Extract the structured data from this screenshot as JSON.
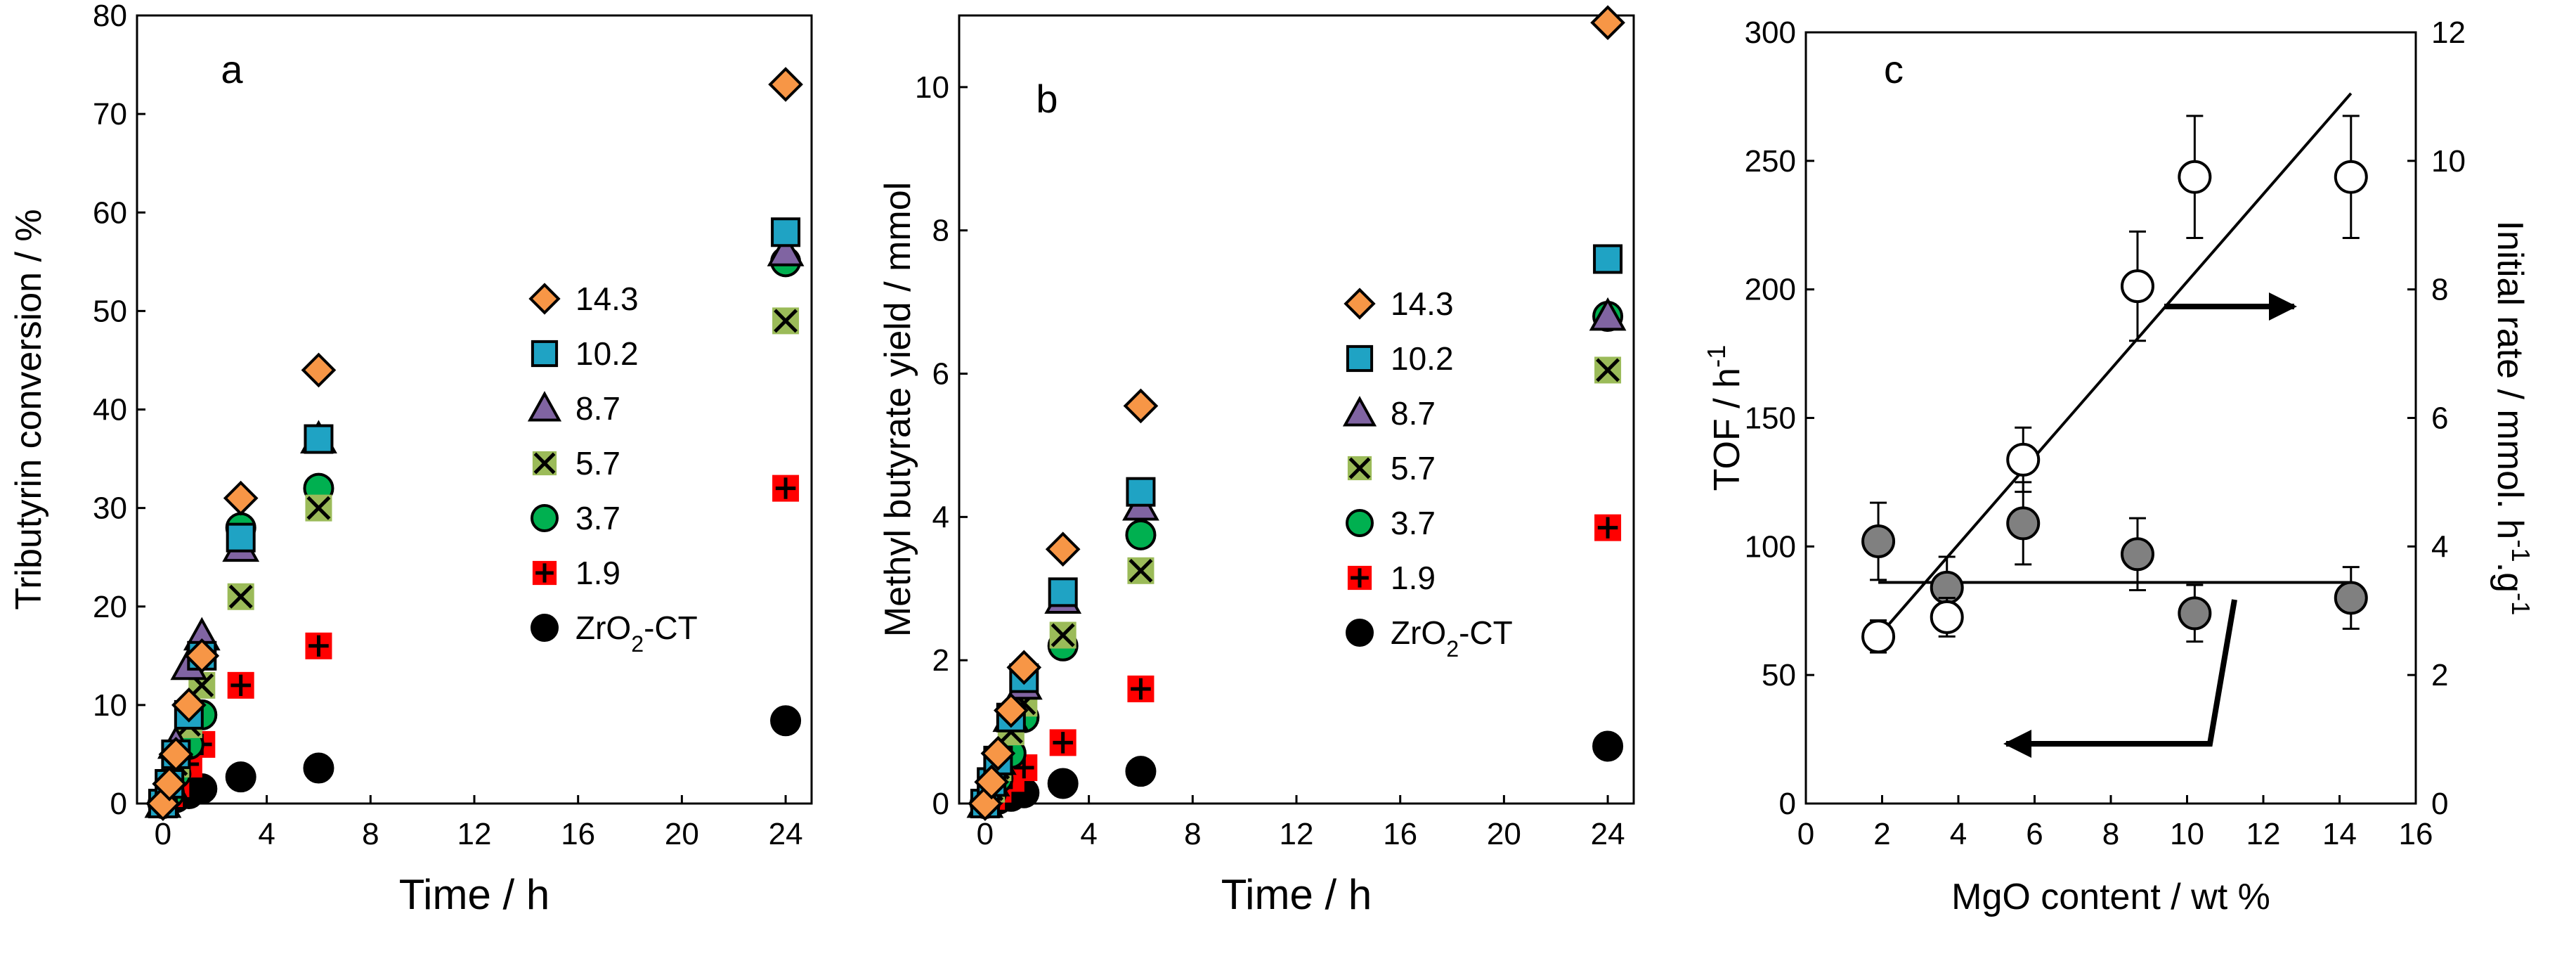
{
  "chart_data": [
    {
      "id": "a",
      "type": "scatter",
      "panel_label": "a",
      "xlabel": "Time / h",
      "ylabel": "Tributyrin conversion / %",
      "xlim": [
        -1,
        25
      ],
      "ylim": [
        0,
        80
      ],
      "xticks": [
        "0",
        "4",
        "8",
        "12",
        "16",
        "20",
        "24"
      ],
      "yticks": [
        "0",
        "10",
        "20",
        "30",
        "40",
        "50",
        "60",
        "70",
        "80"
      ],
      "series": [
        {
          "name": "14.3",
          "marker": "diamond",
          "color": "#f79646",
          "x": [
            0,
            0.25,
            0.5,
            1,
            1.5,
            3,
            6,
            24
          ],
          "y": [
            0,
            2,
            5,
            10,
            15,
            31,
            44,
            73
          ]
        },
        {
          "name": "10.2",
          "marker": "square",
          "color": "#1fa3c4",
          "x": [
            0,
            0.25,
            0.5,
            1,
            1.5,
            3,
            6,
            24
          ],
          "y": [
            0,
            2,
            5,
            9,
            15,
            27,
            37,
            58
          ]
        },
        {
          "name": "8.7",
          "marker": "triangle",
          "color": "#8064a2",
          "x": [
            0,
            0.25,
            0.5,
            1,
            1.5,
            3,
            6,
            24
          ],
          "y": [
            0,
            2,
            6,
            14,
            17,
            26,
            37,
            56
          ]
        },
        {
          "name": "5.7",
          "marker": "x-square",
          "color": "#9bbb59",
          "x": [
            0,
            0.25,
            0.5,
            1,
            1.5,
            3,
            6,
            24
          ],
          "y": [
            0,
            2,
            4,
            8,
            12,
            21,
            30,
            49
          ]
        },
        {
          "name": "3.7",
          "marker": "circle",
          "color": "#00b050",
          "x": [
            0,
            0.25,
            0.5,
            1,
            1.5,
            3,
            6,
            24
          ],
          "y": [
            0,
            1,
            3,
            6,
            9,
            28,
            32,
            55
          ]
        },
        {
          "name": "1.9",
          "marker": "plus-square",
          "color": "#ff0000",
          "x": [
            0,
            0.25,
            0.5,
            1,
            1.5,
            3,
            6,
            24
          ],
          "y": [
            0,
            1,
            2,
            4,
            6,
            12,
            16,
            32
          ]
        },
        {
          "name": "ZrO2-CT",
          "marker": "circle",
          "color": "#000000",
          "x": [
            0,
            0.25,
            0.5,
            1,
            1.5,
            3,
            6,
            24
          ],
          "y": [
            0,
            0.3,
            0.6,
            1,
            1.5,
            2.7,
            3.6,
            8.4
          ]
        }
      ],
      "legend": [
        "14.3",
        "10.2",
        "8.7",
        "5.7",
        "3.7",
        "1.9",
        "ZrO2-CT"
      ]
    },
    {
      "id": "b",
      "type": "scatter",
      "panel_label": "b",
      "xlabel": "Time / h",
      "ylabel": "Methyl butyrate yield / mmol",
      "xlim": [
        -1,
        25
      ],
      "ylim": [
        0,
        11
      ],
      "xticks": [
        "0",
        "4",
        "8",
        "12",
        "16",
        "20",
        "24"
      ],
      "yticks": [
        "0",
        "2",
        "4",
        "6",
        "8",
        "10"
      ],
      "series": [
        {
          "name": "14.3",
          "marker": "diamond",
          "color": "#f79646",
          "x": [
            0,
            0.25,
            0.5,
            1,
            1.5,
            3,
            6,
            24
          ],
          "y": [
            0,
            0.3,
            0.7,
            1.3,
            1.9,
            3.55,
            5.55,
            10.9
          ]
        },
        {
          "name": "10.2",
          "marker": "square",
          "color": "#1fa3c4",
          "x": [
            0,
            0.25,
            0.5,
            1,
            1.5,
            3,
            6,
            24
          ],
          "y": [
            0,
            0.3,
            0.6,
            1.2,
            1.75,
            2.95,
            4.35,
            7.6
          ]
        },
        {
          "name": "8.7",
          "marker": "triangle",
          "color": "#8064a2",
          "x": [
            0,
            0.25,
            0.5,
            1,
            1.5,
            3,
            6,
            24
          ],
          "y": [
            0,
            0.3,
            0.6,
            1.2,
            1.65,
            2.85,
            4.15,
            6.8
          ]
        },
        {
          "name": "5.7",
          "marker": "x-square",
          "color": "#9bbb59",
          "x": [
            0,
            0.25,
            0.5,
            1,
            1.5,
            3,
            6,
            24
          ],
          "y": [
            0,
            0.2,
            0.5,
            1,
            1.4,
            2.35,
            3.25,
            6.05
          ]
        },
        {
          "name": "3.7",
          "marker": "circle",
          "color": "#00b050",
          "x": [
            0,
            0.25,
            0.5,
            1,
            1.5,
            3,
            6,
            24
          ],
          "y": [
            0,
            0.15,
            0.35,
            0.7,
            1.2,
            2.2,
            3.75,
            6.8
          ]
        },
        {
          "name": "1.9",
          "marker": "plus-square",
          "color": "#ff0000",
          "x": [
            0,
            0.25,
            0.5,
            1,
            1.5,
            3,
            6,
            24
          ],
          "y": [
            0,
            0.1,
            0.2,
            0.35,
            0.5,
            0.85,
            1.6,
            3.85
          ]
        },
        {
          "name": "ZrO2-CT",
          "marker": "circle",
          "color": "#000000",
          "x": [
            0,
            0.25,
            0.5,
            1,
            1.5,
            3,
            6,
            24
          ],
          "y": [
            0,
            0.03,
            0.06,
            0.1,
            0.15,
            0.28,
            0.45,
            0.8
          ]
        }
      ],
      "legend": [
        "14.3",
        "10.2",
        "8.7",
        "5.7",
        "3.7",
        "1.9",
        "ZrO2-CT"
      ]
    },
    {
      "id": "c",
      "type": "scatter",
      "panel_label": "c",
      "xlabel": "MgO content / wt %",
      "ylabel": "TOF / h-1",
      "y2label": "Initial rate / mmol. h-1.g-1",
      "xlim": [
        0,
        16
      ],
      "ylim": [
        0,
        300
      ],
      "y2lim": [
        0,
        12
      ],
      "xticks": [
        "0",
        "2",
        "4",
        "6",
        "8",
        "10",
        "12",
        "14",
        "16"
      ],
      "yticks": [
        "0",
        "50",
        "100",
        "150",
        "200",
        "250",
        "300"
      ],
      "y2ticks": [
        "0",
        "2",
        "4",
        "6",
        "8",
        "10",
        "12"
      ],
      "series": [
        {
          "name": "TOF",
          "axis": "left",
          "marker": "circle",
          "color": "#808080",
          "x": [
            1.9,
            3.7,
            5.7,
            8.7,
            10.2,
            14.3
          ],
          "y": [
            102,
            84,
            109,
            97,
            74,
            80
          ],
          "err": [
            15,
            12,
            16,
            14,
            11,
            12
          ]
        },
        {
          "name": "Initial rate",
          "axis": "right",
          "marker": "circle",
          "color": "#ffffff",
          "x": [
            1.9,
            3.7,
            5.7,
            8.7,
            10.2,
            14.3
          ],
          "y": [
            2.6,
            2.9,
            5.35,
            8.05,
            9.75,
            9.75
          ],
          "err": [
            0.25,
            0.3,
            0.5,
            0.85,
            0.95,
            0.95
          ]
        }
      ],
      "fit_lines": [
        {
          "name": "TOF mean",
          "axis": "left",
          "x": [
            1.9,
            14.3
          ],
          "y": [
            86,
            86
          ]
        },
        {
          "name": "Initial rate fit",
          "axis": "right",
          "x": [
            1.9,
            14.3
          ],
          "y": [
            2.6,
            11.05
          ]
        }
      ]
    }
  ]
}
